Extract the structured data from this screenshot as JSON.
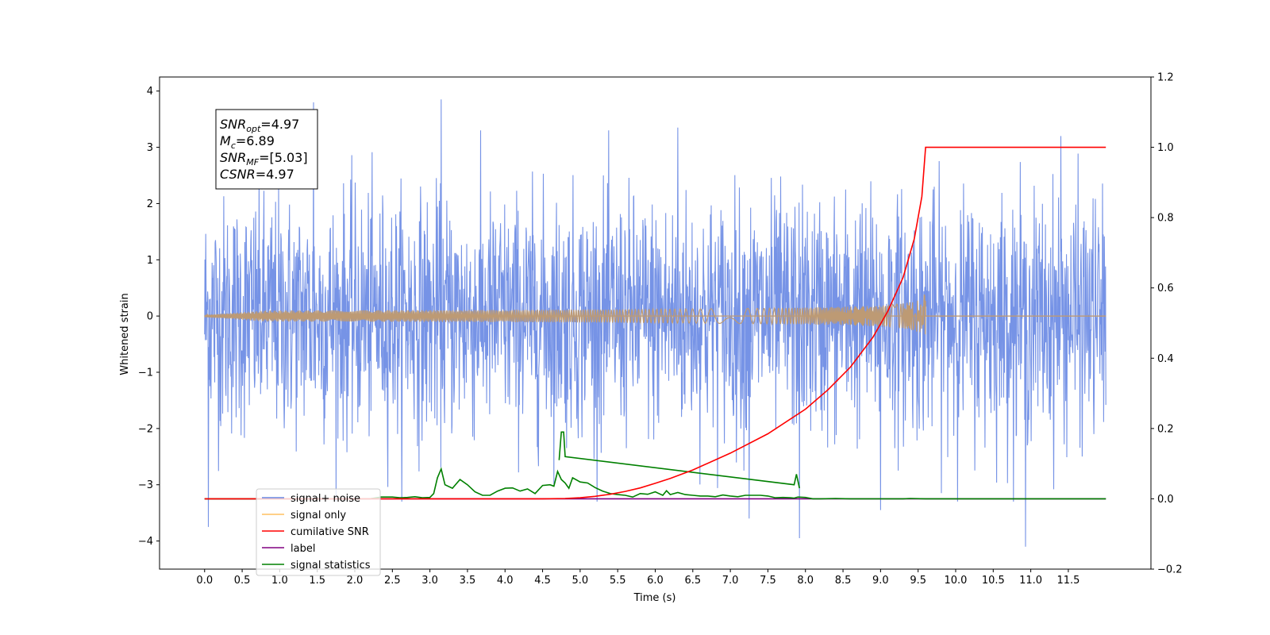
{
  "chart_data": {
    "type": "line",
    "xlabel": "Time (s)",
    "ylabel": "Whitened strain",
    "xlim": [
      -0.6,
      12.6
    ],
    "ylim_left": [
      -4.5,
      4.25
    ],
    "ylim_right": [
      -0.2,
      1.2
    ],
    "x_ticks": [
      "0.0",
      "0.5",
      "1.0",
      "1.5",
      "2.0",
      "2.5",
      "3.0",
      "3.5",
      "4.0",
      "4.5",
      "5.0",
      "5.5",
      "6.0",
      "6.5",
      "7.0",
      "7.5",
      "8.0",
      "8.5",
      "9.0",
      "9.5",
      "10.0",
      "10.5",
      "11.0",
      "11.5"
    ],
    "y_ticks_left": [
      "4",
      "3",
      "2",
      "1",
      "0",
      "−1",
      "−2",
      "−3",
      "−4"
    ],
    "y_ticks_right": [
      "1.2",
      "1.0",
      "0.8",
      "0.6",
      "0.4",
      "0.2",
      "0.0",
      "−0.2"
    ],
    "noise": {
      "x_start": 0.0,
      "x_end": 12.0,
      "std": 1.0,
      "approx_peaks": [
        [
          0.05,
          -3.75
        ],
        [
          1.45,
          3.8
        ],
        [
          3.15,
          3.85
        ],
        [
          6.3,
          3.35
        ],
        [
          7.25,
          -3.6
        ],
        [
          7.92,
          -3.95
        ],
        [
          10.93,
          -4.1
        ],
        [
          11.4,
          3.2
        ],
        [
          9.0,
          -3.45
        ]
      ]
    },
    "signal_only": {
      "x_start": 0.0,
      "x_end": 9.6,
      "peak_amplitude": 0.45,
      "trail_end_x": 12.0
    },
    "cumulative_snr": {
      "x": [
        0.0,
        4.0,
        4.5,
        4.8,
        5.0,
        5.2,
        5.4,
        5.6,
        5.8,
        6.0,
        6.2,
        6.5,
        7.0,
        7.5,
        8.0,
        8.3,
        8.6,
        8.9,
        9.1,
        9.3,
        9.45,
        9.55,
        9.6,
        12.0
      ],
      "y": [
        0.0,
        0.0,
        0.0,
        0.001,
        0.003,
        0.007,
        0.013,
        0.021,
        0.031,
        0.044,
        0.058,
        0.082,
        0.13,
        0.185,
        0.255,
        0.31,
        0.375,
        0.46,
        0.535,
        0.63,
        0.74,
        0.86,
        1.0,
        1.0
      ]
    },
    "label": {
      "x_start": 0.0,
      "x_end": 12.0,
      "value": 0.0
    },
    "signal_statistics": {
      "x": [
        0.0,
        2.2,
        2.35,
        2.5,
        2.6,
        2.7,
        2.8,
        2.9,
        3.0,
        3.05,
        3.1,
        3.15,
        3.2,
        3.3,
        3.4,
        3.5,
        3.6,
        3.7,
        3.8,
        3.9,
        4.0,
        4.1,
        4.2,
        4.3,
        4.4,
        4.5,
        4.6,
        4.65,
        4.7,
        4.75,
        4.8,
        4.85,
        4.9,
        5.0,
        5.1,
        5.2,
        5.3,
        5.4,
        5.5,
        5.6,
        5.7,
        5.8,
        5.9,
        6.0,
        6.05,
        6.1,
        6.15,
        6.2,
        6.3,
        6.4,
        6.5,
        6.6,
        6.7,
        6.8,
        6.9,
        7.0,
        7.1,
        7.2,
        7.4,
        7.5,
        7.6,
        7.7,
        7.8,
        7.85,
        7.9,
        8.0,
        8.1,
        8.2,
        8.4,
        8.6,
        9.0,
        9.3,
        9.4,
        9.6,
        12.0
      ],
      "y": [
        0.0,
        0.0,
        0.005,
        0.005,
        0.003,
        0.004,
        0.006,
        0.003,
        0.004,
        0.015,
        0.06,
        0.085,
        0.04,
        0.03,
        0.055,
        0.04,
        0.02,
        0.01,
        0.01,
        0.022,
        0.03,
        0.031,
        0.022,
        0.028,
        0.015,
        0.038,
        0.04,
        0.036,
        0.078,
        0.055,
        0.045,
        0.03,
        0.06,
        0.048,
        0.045,
        0.032,
        0.022,
        0.015,
        0.012,
        0.01,
        0.005,
        0.015,
        0.013,
        0.02,
        0.015,
        0.01,
        0.023,
        0.012,
        0.018,
        0.012,
        0.01,
        0.008,
        0.008,
        0.006,
        0.011,
        0.008,
        0.006,
        0.01,
        0.01,
        0.008,
        0.003,
        0.004,
        0.003,
        0.002,
        0.005,
        0.004,
        0.0,
        0.0,
        0.001,
        0.0,
        0.0,
        0.0,
        0.001,
        0.0,
        0.0
      ]
    },
    "statistics_spike": {
      "x": [
        4.72,
        4.75,
        4.78,
        4.8,
        7.85,
        7.88,
        7.92
      ],
      "note": ""
    },
    "legend": {
      "placement": "lower-left",
      "entries": [
        {
          "label": "signal+ noise",
          "color": "#6a8ae4"
        },
        {
          "label": "signal only",
          "color": "#ffc061"
        },
        {
          "label": "cumilative SNR",
          "color": "#ff0000"
        },
        {
          "label": "label",
          "color": "#800080"
        },
        {
          "label": "signal statistics",
          "color": "#008000"
        }
      ]
    },
    "textbox": {
      "lines": [
        {
          "main": "SNR",
          "sub": "opt",
          "value": "=4.97"
        },
        {
          "main": "M",
          "sub": "c",
          "value": "=6.89"
        },
        {
          "main": "SNR",
          "sub": "MF",
          "value": "=[5.03]"
        },
        {
          "main": "CSNR",
          "sub": "",
          "value": "=4.97"
        }
      ]
    },
    "colors": {
      "noise": "#6a8ae4",
      "signal_only": "#ffc061",
      "overlap": "#bd9a74",
      "snr": "#ff0000",
      "label": "#800080",
      "statistics": "#008000"
    }
  }
}
